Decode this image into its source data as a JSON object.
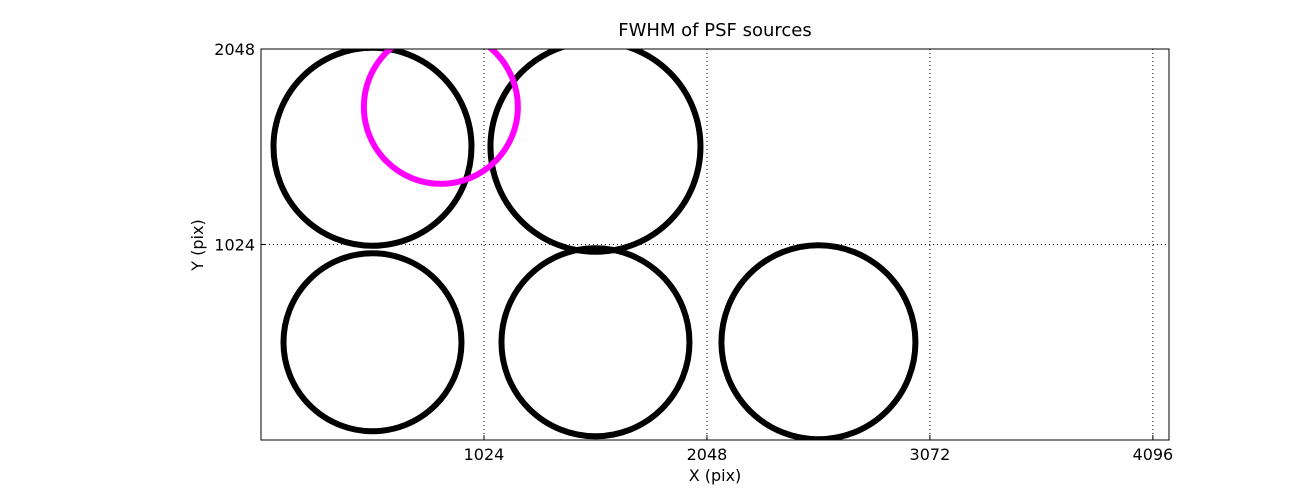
{
  "chart_data": {
    "type": "scatter",
    "title": "FWHM of PSF sources",
    "x_label": "X (pix)",
    "y_label": "Y (pix)",
    "xlim": [
      0,
      4170
    ],
    "ylim": [
      0,
      2048
    ],
    "xticks": [
      1024,
      2048,
      3072,
      4096
    ],
    "yticks": [
      1024,
      2048
    ],
    "grid": true,
    "series": [
      {
        "color": "#000000",
        "x": [
          512,
          1536,
          512,
          1536,
          2560
        ],
        "values": [
          1536,
          1536,
          512,
          512,
          512
        ],
        "sizes": [
          198,
          210,
          178,
          188,
          194
        ]
      },
      {
        "color": "#ff00ff",
        "x": [
          826
        ],
        "values": [
          1745
        ],
        "sizes": [
          154
        ]
      }
    ]
  }
}
